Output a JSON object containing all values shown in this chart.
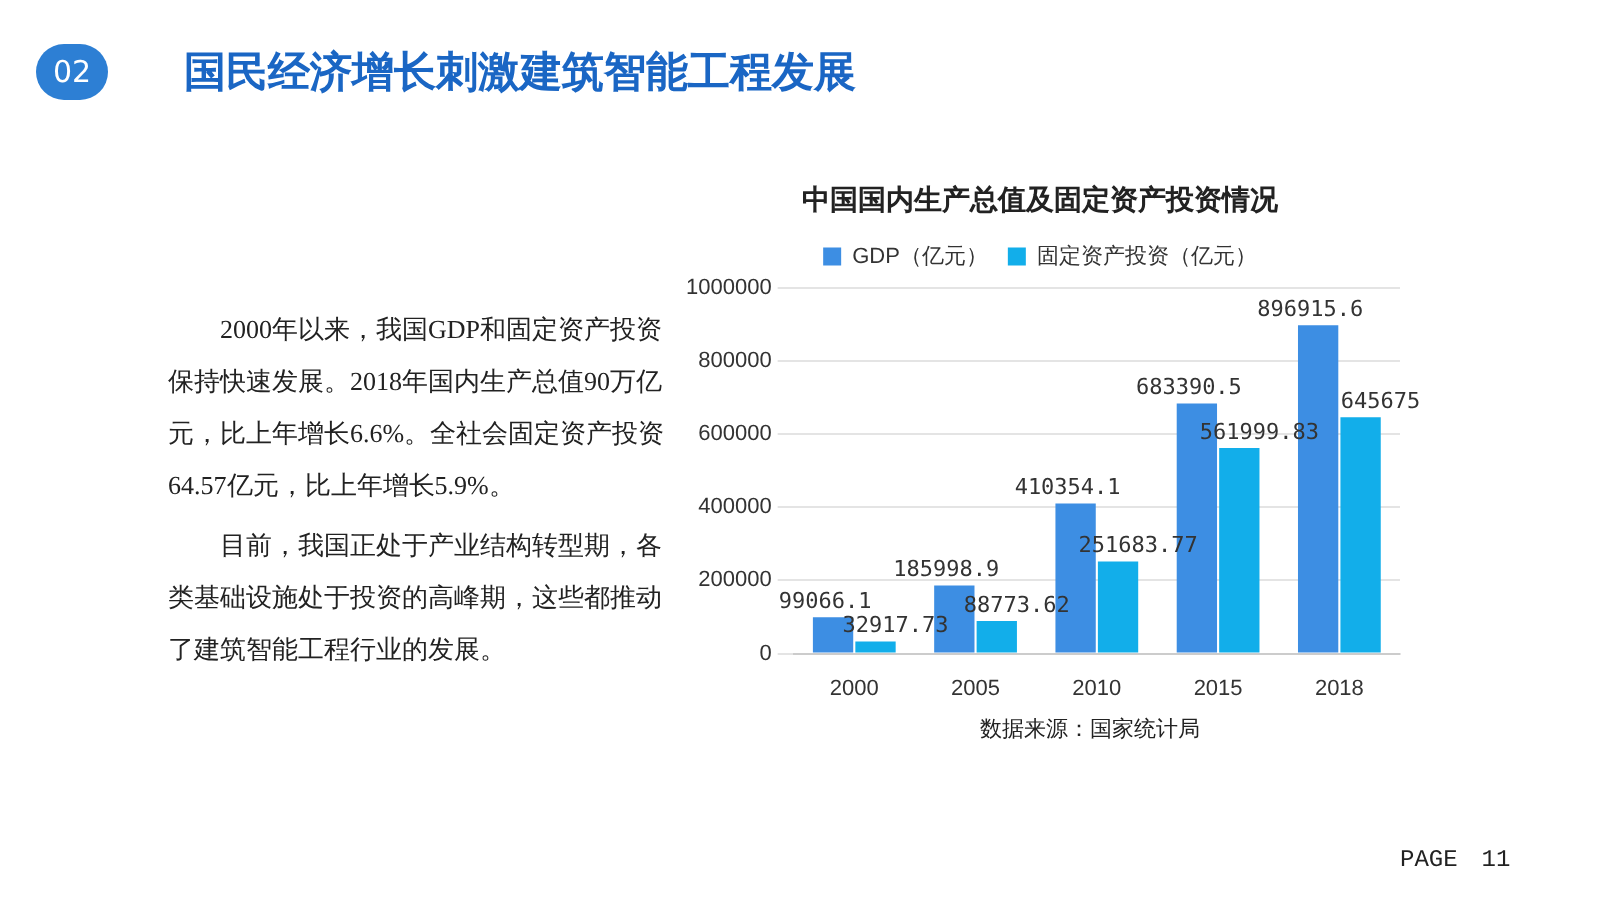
{
  "chart_data": {
    "type": "bar",
    "title": "中国国内生产总值及固定资产投资情况",
    "categories": [
      "2000",
      "2005",
      "2010",
      "2015",
      "2018"
    ],
    "series": [
      {
        "name": "GDP（亿元）",
        "color": "#3d8ee3",
        "values": [
          99066.1,
          185998.9,
          410354.1,
          683390.5,
          896915.6
        ]
      },
      {
        "name": "固定资产投资（亿元）",
        "color": "#12aeea",
        "values": [
          32917.73,
          88773.62,
          251683.77,
          561999.83,
          645675
        ]
      }
    ],
    "ylim": [
      0,
      1000000
    ],
    "yticks": [
      0,
      200000,
      400000,
      600000,
      800000,
      1000000
    ],
    "grid": "y",
    "legend": "top",
    "data_labels": true,
    "annotations": [
      "02",
      "国民经济增长刺激建筑智能工程发展",
      "2000年以来，我国GDP和固定资产投资保持快速发展。2018年国内生产总值90万亿元，比上年增长6.6%。全社会固定资产投资64.57亿元，比上年增长5.9%。",
      "目前，我国正处于产业结构转型期，各类基础设施处于投资的高峰期，这些都推动了建筑智能工程行业的发展。",
      "数据来源：国家统计局",
      "PAGE　11"
    ]
  }
}
